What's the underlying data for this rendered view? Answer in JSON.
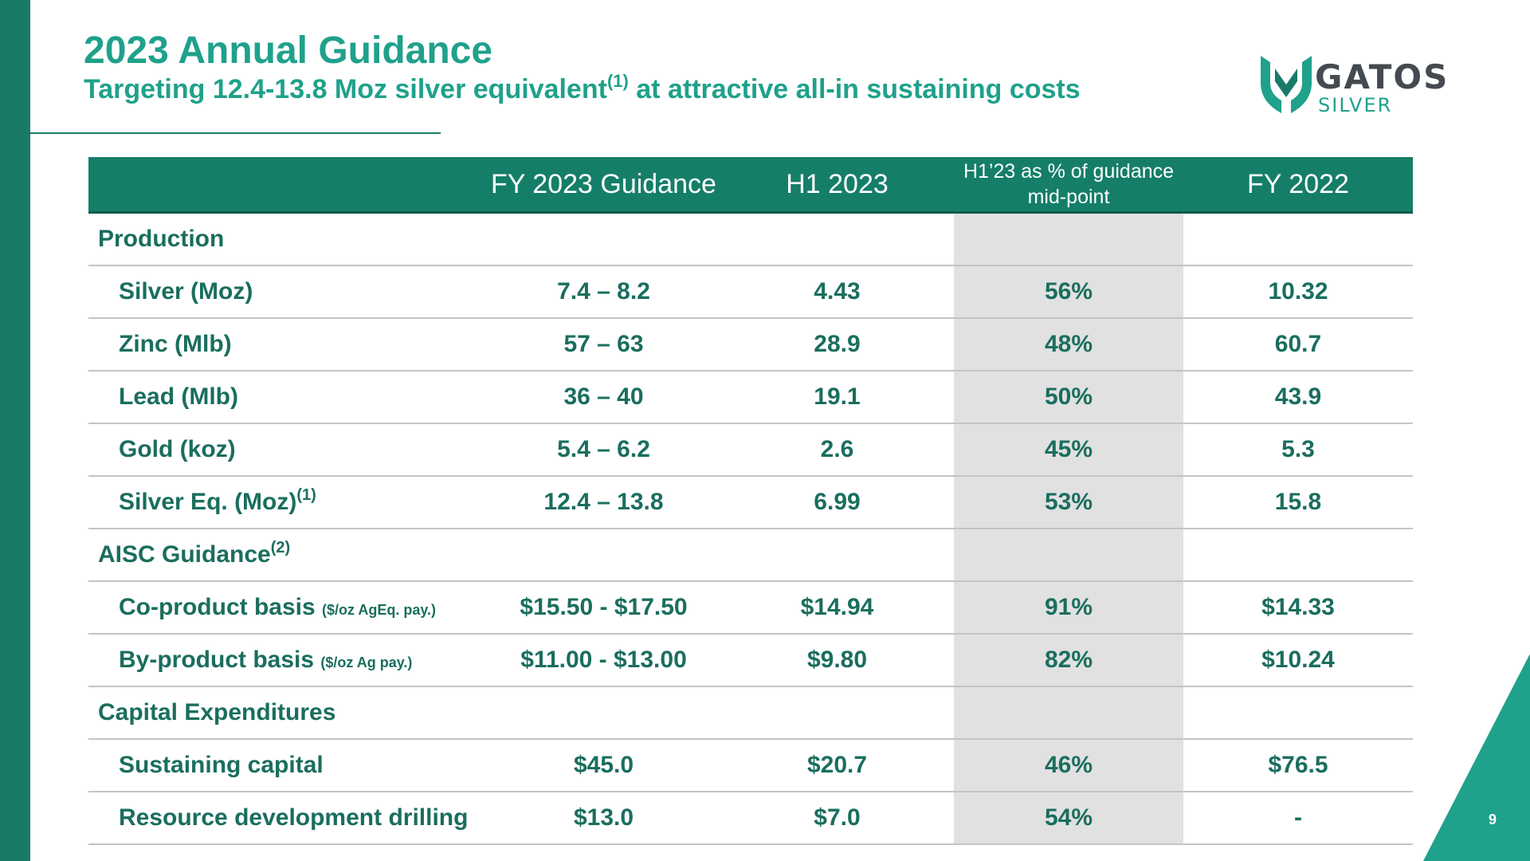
{
  "slide": {
    "title": "2023 Annual Guidance",
    "subtitle_text": "Targeting 12.4-13.8 Moz silver equivalent",
    "subtitle_ref": "(1)",
    "subtitle_end": " at attractive all-in sustaining costs",
    "page_number": "9"
  },
  "logo": {
    "word": "GATOS",
    "sub": "SILVER",
    "icon": "gatos-shield-logo-icon"
  },
  "colors": {
    "accent": "#1fa18b",
    "dark_green": "#1a7a68",
    "header_fill": "#157e69",
    "highlight_column": "#e1e1e1",
    "logo_grey": "#444a4f"
  },
  "table": {
    "headers": [
      "",
      "FY 2023 Guidance",
      "H1 2023",
      "H1’23 as % of guidance mid-point",
      "FY 2022"
    ],
    "rows": [
      {
        "label": "Production",
        "ref": "",
        "note": "",
        "section": true,
        "values": [
          "",
          "",
          "",
          ""
        ]
      },
      {
        "label": "Silver (Moz)",
        "ref": "",
        "note": "",
        "section": false,
        "values": [
          "7.4 – 8.2",
          "4.43",
          "56%",
          "10.32"
        ]
      },
      {
        "label": "Zinc (Mlb)",
        "ref": "",
        "note": "",
        "section": false,
        "values": [
          "57 – 63",
          "28.9",
          "48%",
          "60.7"
        ]
      },
      {
        "label": "Lead (Mlb)",
        "ref": "",
        "note": "",
        "section": false,
        "values": [
          "36 – 40",
          "19.1",
          "50%",
          "43.9"
        ]
      },
      {
        "label": "Gold (koz)",
        "ref": "",
        "note": "",
        "section": false,
        "values": [
          "5.4 – 6.2",
          "2.6",
          "45%",
          "5.3"
        ]
      },
      {
        "label": "Silver Eq. (Moz)",
        "ref": "(1)",
        "note": "",
        "section": false,
        "values": [
          "12.4 – 13.8",
          "6.99",
          "53%",
          "15.8"
        ]
      },
      {
        "label": "AISC Guidance",
        "ref": "(2)",
        "note": "",
        "section": true,
        "values": [
          "",
          "",
          "",
          ""
        ]
      },
      {
        "label": "Co-product basis",
        "ref": "",
        "note": "($/oz AgEq. pay.)",
        "section": false,
        "values": [
          "$15.50 - $17.50",
          "$14.94",
          "91%",
          "$14.33"
        ]
      },
      {
        "label": "By-product basis",
        "ref": "",
        "note": "($/oz Ag pay.)",
        "section": false,
        "values": [
          "$11.00 - $13.00",
          "$9.80",
          "82%",
          "$10.24"
        ]
      },
      {
        "label": "Capital Expenditures",
        "ref": "",
        "note": "",
        "section": true,
        "values": [
          "",
          "",
          "",
          ""
        ]
      },
      {
        "label": "Sustaining capital",
        "ref": "",
        "note": "",
        "section": false,
        "values": [
          "$45.0",
          "$20.7",
          "46%",
          "$76.5"
        ]
      },
      {
        "label": "Resource development drilling",
        "ref": "",
        "note": "",
        "section": false,
        "values": [
          "$13.0",
          "$7.0",
          "54%",
          "-"
        ]
      }
    ]
  }
}
